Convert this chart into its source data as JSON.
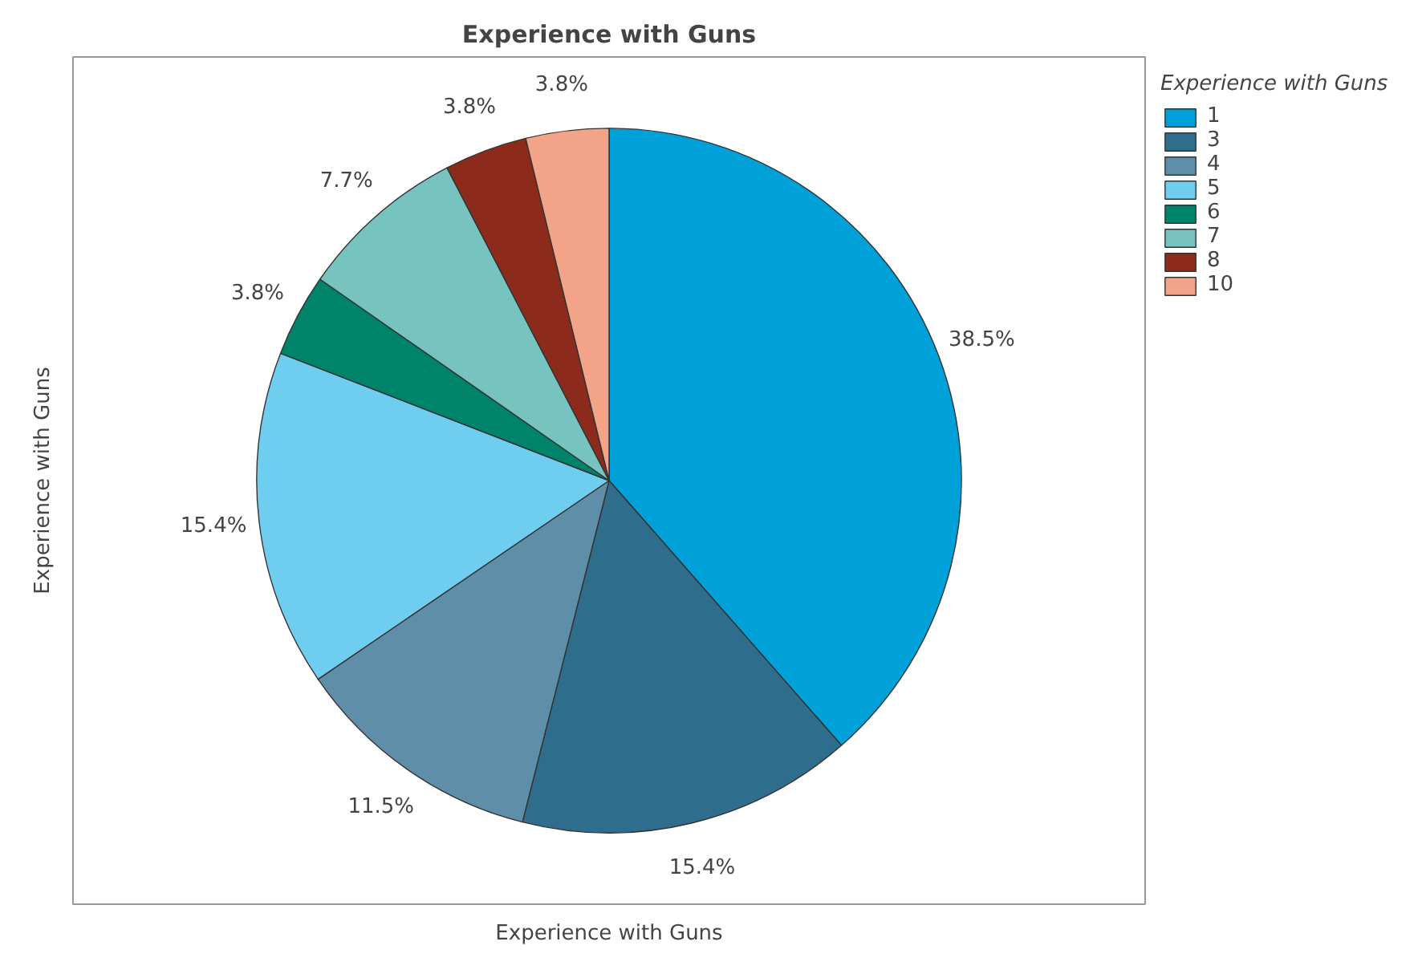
{
  "chart_data": {
    "type": "pie",
    "title": "Experience with Guns",
    "xlabel": "Experience with Guns",
    "ylabel": "Experience with Guns",
    "legend_title": "Experience with Guns",
    "categories": [
      "1",
      "3",
      "4",
      "5",
      "6",
      "7",
      "8",
      "10"
    ],
    "values": [
      38.5,
      15.4,
      11.5,
      15.4,
      3.8,
      7.7,
      3.8,
      3.8
    ],
    "value_labels": [
      "38.5%",
      "15.4%",
      "11.5%",
      "15.4%",
      "3.8%",
      "7.7%",
      "3.8%",
      "3.8%"
    ],
    "colors": [
      "#00a0d8",
      "#2f6d8c",
      "#5f8fa8",
      "#6fcdf0",
      "#00836b",
      "#76c3bf",
      "#8c2b1c",
      "#f2a388"
    ],
    "legend": "right"
  }
}
